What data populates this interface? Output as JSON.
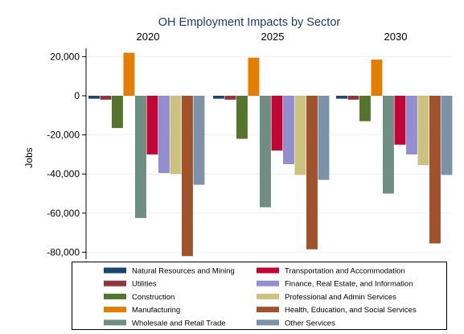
{
  "chart_data": {
    "type": "bar",
    "title": "OH Employment Impacts by Sector",
    "xlabel": "",
    "ylabel": "Jobs",
    "ylim": [
      -84000,
      26000
    ],
    "yticks": [
      20000,
      0,
      -20000,
      -40000,
      -60000,
      -80000
    ],
    "ytick_labels": [
      "20,000",
      "0",
      "-20,000",
      "-40,000",
      "-60,000",
      "-80,000"
    ],
    "grid": true,
    "legend_position": "bottom",
    "panels": [
      "2020",
      "2025",
      "2030"
    ],
    "series": [
      {
        "name": "Natural Resources and Mining",
        "color": "#1a476f",
        "values": [
          -1500,
          -1500,
          -1500
        ]
      },
      {
        "name": "Utilities",
        "color": "#90353b",
        "values": [
          -2000,
          -2000,
          -2000
        ]
      },
      {
        "name": "Construction",
        "color": "#55752f",
        "values": [
          -16500,
          -22000,
          -13000
        ]
      },
      {
        "name": "Manufacturing",
        "color": "#e37e00",
        "values": [
          22000,
          19500,
          18500
        ]
      },
      {
        "name": "Wholesale and Retail Trade",
        "color": "#6e8e84",
        "values": [
          -62500,
          -57000,
          -50000
        ]
      },
      {
        "name": "Transportation and Accommodation",
        "color": "#c10534",
        "values": [
          -30000,
          -28000,
          -25000
        ]
      },
      {
        "name": "Finance, Real Estate, and Information",
        "color": "#938dd2",
        "values": [
          -39500,
          -35000,
          -30000
        ]
      },
      {
        "name": "Professional and Admin Services",
        "color": "#cac27e",
        "values": [
          -40000,
          -40500,
          -35500
        ]
      },
      {
        "name": "Health, Education, and Social Services",
        "color": "#a0522d",
        "values": [
          -82000,
          -78500,
          -75500
        ]
      },
      {
        "name": "Other Services",
        "color": "#7b92a8",
        "values": [
          -45500,
          -43000,
          -40500
        ]
      }
    ],
    "legend_order": [
      "Natural Resources and Mining",
      "Transportation and Accommodation",
      "Utilities",
      "Finance, Real Estate, and Information",
      "Construction",
      "Professional and Admin Services",
      "Manufacturing",
      "Health, Education, and Social Services",
      "Wholesale and Retail Trade",
      "Other Services"
    ]
  }
}
